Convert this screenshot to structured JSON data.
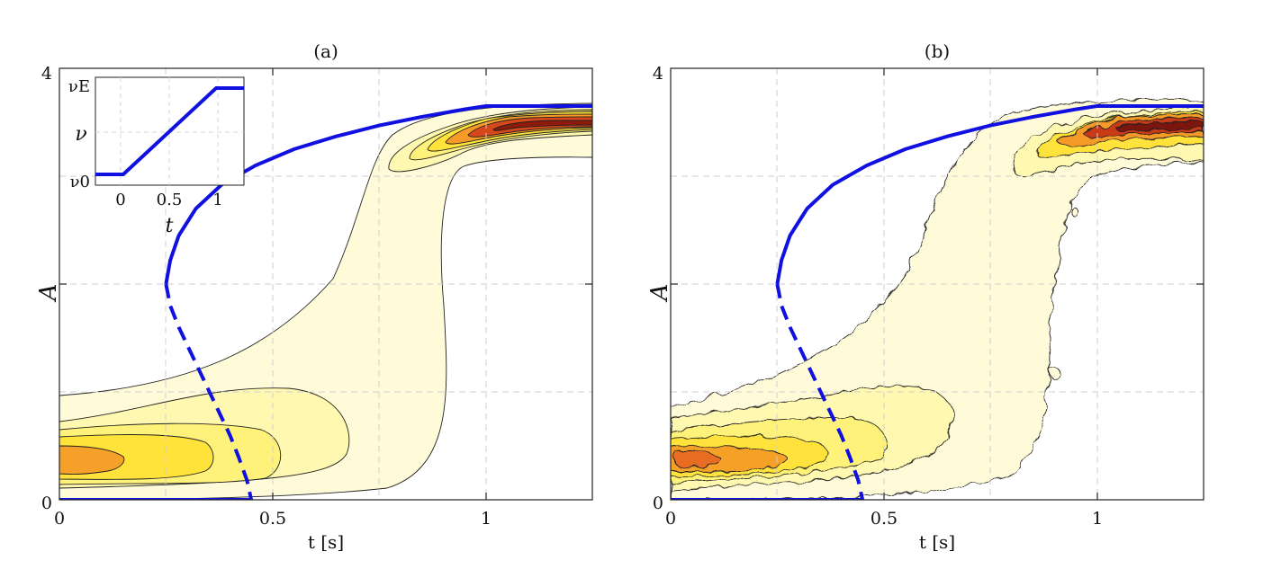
{
  "chart_data": [
    {
      "panel": "a",
      "type": "line",
      "title": "(a)",
      "xlabel": "t [s]",
      "ylabel": "A",
      "xlim": [
        0,
        1.25
      ],
      "ylim": [
        0,
        4
      ],
      "xticks": [
        "0",
        "0.5",
        "1"
      ],
      "yticks": [
        "0",
        "4"
      ],
      "grid": true,
      "background": "filled contour density (yellow→red), smooth",
      "stable_branch": {
        "x": [
          0.25,
          0.26,
          0.28,
          0.32,
          0.38,
          0.46,
          0.55,
          0.65,
          0.75,
          0.85,
          0.95,
          1.0,
          1.25
        ],
        "y": [
          2.0,
          2.22,
          2.45,
          2.7,
          2.92,
          3.1,
          3.25,
          3.37,
          3.47,
          3.55,
          3.62,
          3.65,
          3.65
        ]
      },
      "unstable_branch": {
        "x": [
          0.25,
          0.26,
          0.28,
          0.31,
          0.34,
          0.37,
          0.4,
          0.42,
          0.44,
          0.45
        ],
        "y": [
          2.0,
          1.8,
          1.6,
          1.35,
          1.1,
          0.85,
          0.6,
          0.4,
          0.18,
          0.0
        ]
      },
      "zero_branch": {
        "x": [
          0,
          0.45
        ],
        "y": [
          0,
          0
        ]
      },
      "inset": {
        "xlabel": "t",
        "ylabel": "ν",
        "xticks": [
          "0",
          "0.5",
          "1"
        ],
        "yticks": [
          "ν0",
          "νE"
        ],
        "xlim": [
          -0.3,
          1.3
        ],
        "line": {
          "x": [
            -0.3,
            0,
            1,
            1.3
          ],
          "y": [
            0,
            0,
            1,
            1
          ]
        }
      }
    },
    {
      "panel": "b",
      "type": "line",
      "title": "(b)",
      "xlabel": "t [s]",
      "ylabel": "A",
      "xlim": [
        0,
        1.25
      ],
      "ylim": [
        0,
        4
      ],
      "xticks": [
        "0",
        "0.5",
        "1"
      ],
      "yticks": [
        "0",
        "4"
      ],
      "grid": true,
      "background": "filled contour density (yellow→red), noisy",
      "stable_branch": {
        "x": [
          0.25,
          0.26,
          0.28,
          0.32,
          0.38,
          0.46,
          0.55,
          0.65,
          0.75,
          0.85,
          0.95,
          1.0,
          1.25
        ],
        "y": [
          2.0,
          2.22,
          2.45,
          2.7,
          2.92,
          3.1,
          3.25,
          3.37,
          3.47,
          3.55,
          3.62,
          3.65,
          3.65
        ]
      },
      "unstable_branch": {
        "x": [
          0.25,
          0.26,
          0.28,
          0.31,
          0.34,
          0.37,
          0.4,
          0.42,
          0.44,
          0.45
        ],
        "y": [
          2.0,
          1.8,
          1.6,
          1.35,
          1.1,
          0.85,
          0.6,
          0.4,
          0.18,
          0.0
        ]
      },
      "zero_branch": {
        "x": [
          0,
          0.45
        ],
        "y": [
          0,
          0
        ]
      }
    }
  ],
  "colors": {
    "curve": "#1010e0",
    "contour_levels": [
      "#fffbd8",
      "#fff8b0",
      "#fff27a",
      "#ffe23a",
      "#fcc020",
      "#f59a26",
      "#e86c22",
      "#c93a16",
      "#8e1a0c"
    ],
    "grid": "#cfcfcf"
  }
}
